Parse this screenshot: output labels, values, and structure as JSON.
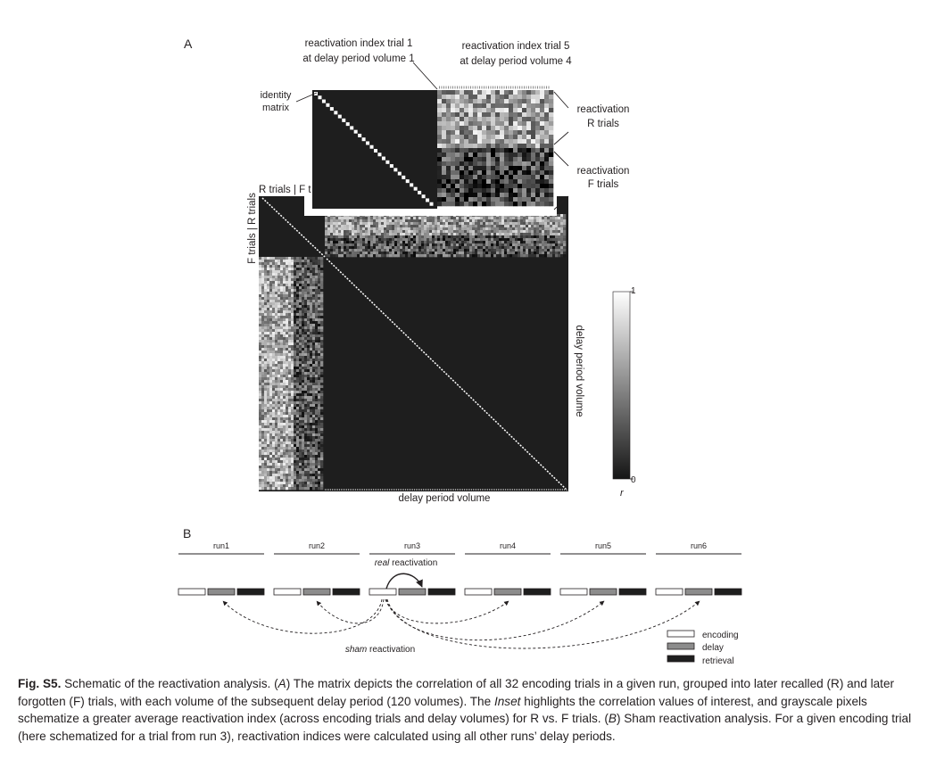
{
  "panels": {
    "a_label": "A",
    "b_label": "B"
  },
  "panel_a": {
    "callouts": {
      "trial1_line1": "reactivation index trial 1",
      "trial1_line2": "at delay period volume 1",
      "trial5_line1": "reactivation index trial 5",
      "trial5_line2": "at delay period volume 4",
      "identity_line1": "identity",
      "identity_line2": "matrix",
      "r_trials_line1": "reactivation",
      "r_trials_line2": "R trials",
      "f_trials_line1": "reactivation",
      "f_trials_line2": "F trials"
    },
    "axis_labels": {
      "top": "R trials | F t",
      "left": "F trials | R trials",
      "bottom": "delay period volume",
      "right": "delay period volume"
    },
    "colorbar": {
      "max": "1",
      "min": "0",
      "symbol": "r"
    }
  },
  "panel_b": {
    "runs": [
      "run1",
      "run2",
      "run3",
      "run4",
      "run5",
      "run6"
    ],
    "real_label_italic": "real",
    "real_label_rest": " reactivation",
    "sham_label_italic": "sham",
    "sham_label_rest": " reactivation",
    "legend": [
      {
        "label": "encoding",
        "color": "#ffffff"
      },
      {
        "label": "delay",
        "color": "#8c8c8c"
      },
      {
        "label": "retrieval",
        "color": "#1e1e1e"
      }
    ]
  },
  "caption": {
    "fig_label": "Fig. S5.",
    "p1": " Schematic of the reactivation analysis. (",
    "a_italic": "A",
    "p2": ") The matrix depicts the correlation of all 32 encoding trials in a given run, grouped into later recalled (R) and later forgotten (F) trials, with each volume of the subsequent delay period (120 volumes). The ",
    "inset_italic": "Inset",
    "p3": " highlights the correlation values of interest, and grayscale pixels schematize a greater average reactivation index (across encoding trials and delay volumes) for R vs. F trials. (",
    "b_italic": "B",
    "p4": ") Sham reactivation analysis. For a given encoding trial (here schematized for a trial from run 3), reactivation indices were calculated using all other runs’ delay periods."
  }
}
